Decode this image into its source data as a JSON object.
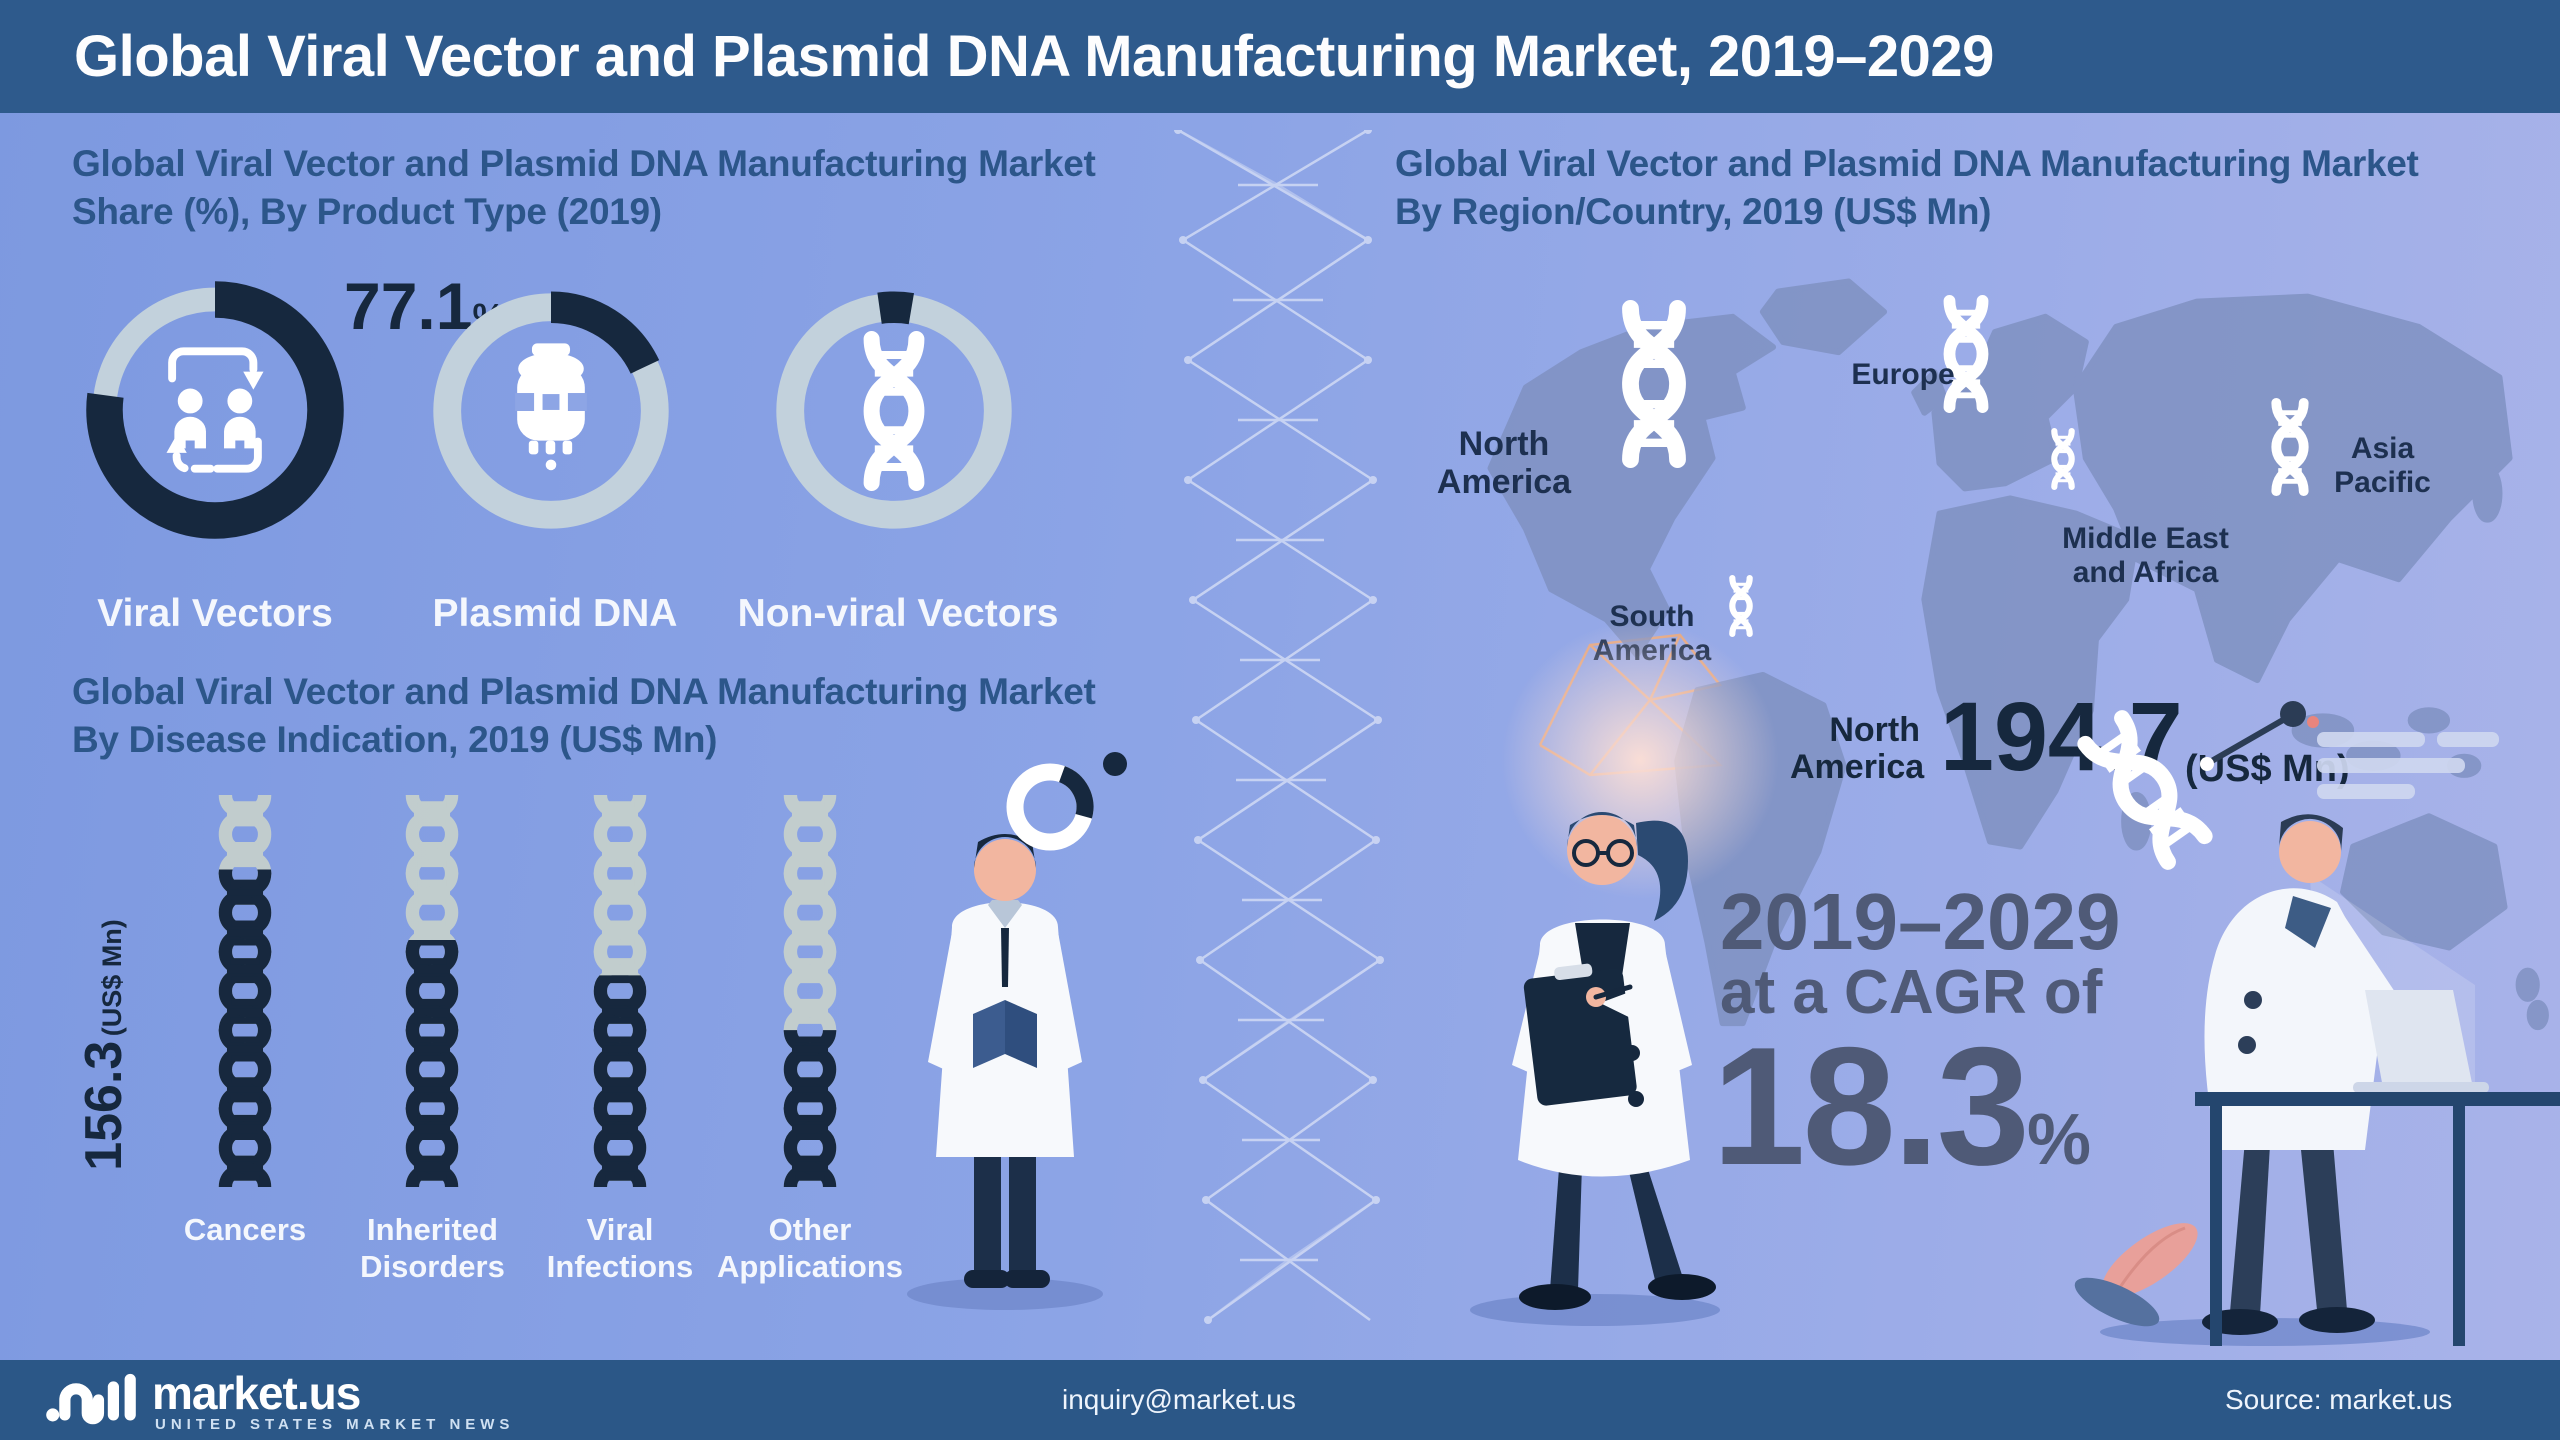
{
  "header": {
    "title": "Global Viral Vector and Plasmid DNA Manufacturing Market, 2019–2029"
  },
  "product_share": {
    "heading_line1": "Global Viral Vector and Plasmid DNA Manufacturing Market",
    "heading_line2": "Share (%), By Product Type (2019)",
    "highlight_value": "77.1",
    "highlight_unit": "%",
    "donuts": [
      {
        "label": "Viral Vectors",
        "icon": "people-exchange-icon",
        "share_pct": 77.1
      },
      {
        "label": "Plasmid DNA",
        "icon": "bioreactor-icon",
        "share_pct": null
      },
      {
        "label": "Non-viral Vectors",
        "icon": "dna-icon",
        "share_pct": null
      }
    ]
  },
  "disease": {
    "heading_line1": "Global Viral Vector and Plasmid DNA Manufacturing Market",
    "heading_line2": "By Disease Indication, 2019 (US$ Mn)",
    "axis_value": "156.3",
    "axis_unit": "(US$ Mn)",
    "bars": [
      {
        "label": "Cancers"
      },
      {
        "label": "Inherited Disorders"
      },
      {
        "label": "Viral Infections"
      },
      {
        "label": "Other Applications"
      }
    ]
  },
  "region": {
    "heading_line1": "Global Viral Vector and Plasmid DNA Manufacturing Market",
    "heading_line2": "By Region/Country, 2019 (US$ Mn)",
    "labels": [
      {
        "name": "North America"
      },
      {
        "name": "Europe"
      },
      {
        "name": "Asia Pacific"
      },
      {
        "name": "Middle East and Africa"
      },
      {
        "name": "South America"
      }
    ],
    "callout": {
      "region": "North America",
      "value": "194.7",
      "unit": "(US$ Mn)"
    },
    "cagr": {
      "period": "2019–2029",
      "lead": "at a CAGR of",
      "value": "18.3",
      "unit": "%"
    }
  },
  "footer": {
    "brand": "market.us",
    "tagline": "UNITED STATES MARKET NEWS",
    "email": "inquiry@market.us",
    "source": "Source: market.us"
  },
  "colors": {
    "header_bar": "#2e5a8c",
    "footer_bar": "#2b5787",
    "background_left": "#7d99e0",
    "background_right": "#a9b3e9",
    "dark_navy": "#16283e",
    "light_ring": "#c2d1dc",
    "unfilled_helix": "#c7d1cc",
    "heading_blue": "#2c568a",
    "cagr_gray": "#4f5a77",
    "map_fill": "#7e90c0",
    "accent_orange": "#e9a87e",
    "accent_pink": "#e8a09a"
  },
  "chart_data": [
    {
      "type": "pie",
      "variant": "three-donut-gauges",
      "title": "Global Viral Vector and Plasmid DNA Manufacturing Market Share (%), By Product Type (2019)",
      "unit": "%",
      "categories": [
        "Viral Vectors",
        "Plasmid DNA",
        "Non-viral Vectors"
      ],
      "values": [
        77.1,
        18.0,
        4.9
      ],
      "labeled_values": {
        "Viral Vectors": 77.1
      },
      "notes": "Only the Viral Vectors share (77.1%) is printed; Plasmid DNA and Non-viral Vectors arc sizes are visual estimates summing to 100."
    },
    {
      "type": "bar",
      "variant": "dna-helix-columns",
      "title": "Global Viral Vector and Plasmid DNA Manufacturing Market By Disease Indication, 2019 (US$ Mn)",
      "ylabel": "US$ Mn",
      "categories": [
        "Cancers",
        "Inherited Disorders",
        "Viral Infections",
        "Other Applications"
      ],
      "values": [
        156.3,
        null,
        null,
        null
      ],
      "fill_pct": [
        81,
        63,
        54,
        40
      ],
      "notes": "Only the Cancers value (156.3 US$ Mn) is printed; fill_pct is the estimated filled fraction of each helix column."
    },
    {
      "type": "map",
      "title": "Global Viral Vector and Plasmid DNA Manufacturing Market By Region/Country, 2019 (US$ Mn)",
      "regions": [
        "North America",
        "Europe",
        "Asia Pacific",
        "Middle East and Africa",
        "South America"
      ],
      "values": {
        "North America": 194.7
      },
      "unit": "US$ Mn",
      "icon_scale": {
        "North America": "large",
        "Europe": "medium",
        "Asia Pacific": "medium",
        "Middle East and Africa": "small",
        "South America": "small"
      },
      "annotation": {
        "period": "2019–2029",
        "cagr_pct": 18.3
      }
    }
  ]
}
